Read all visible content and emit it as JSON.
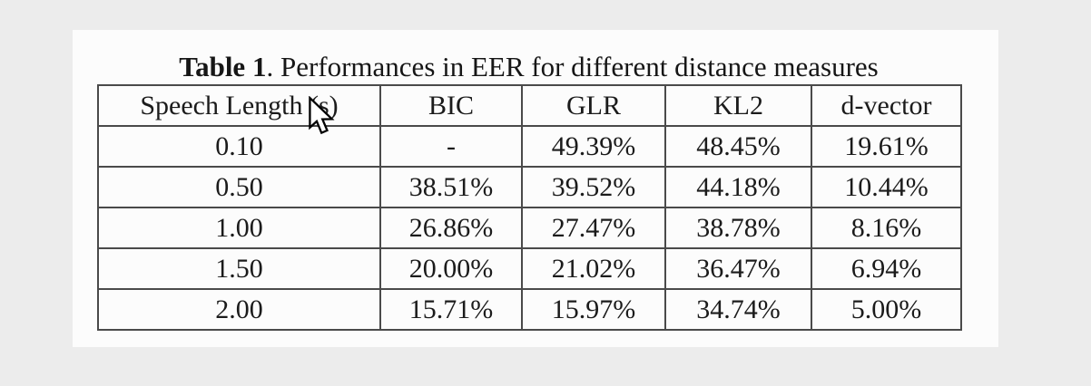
{
  "page": {
    "background_color": "#ececec",
    "panel_color": "#fcfcfc",
    "border_color": "#4a4a4a",
    "text_color": "#1b1b1b"
  },
  "caption": {
    "label": "Table 1",
    "text": ". Performances in EER for different distance measures"
  },
  "table": {
    "columns": [
      "Speech Length (s)",
      "BIC",
      "GLR",
      "KL2",
      "d-vector"
    ],
    "rows": [
      [
        "0.10",
        "-",
        "49.39%",
        "48.45%",
        "19.61%"
      ],
      [
        "0.50",
        "38.51%",
        "39.52%",
        "44.18%",
        "10.44%"
      ],
      [
        "1.00",
        "26.86%",
        "27.47%",
        "38.78%",
        "8.16%"
      ],
      [
        "1.50",
        "20.00%",
        "21.02%",
        "36.47%",
        "6.94%"
      ],
      [
        "2.00",
        "15.71%",
        "15.97%",
        "34.74%",
        "5.00%"
      ]
    ]
  },
  "cursor": {
    "icon": "arrow-pointer"
  }
}
